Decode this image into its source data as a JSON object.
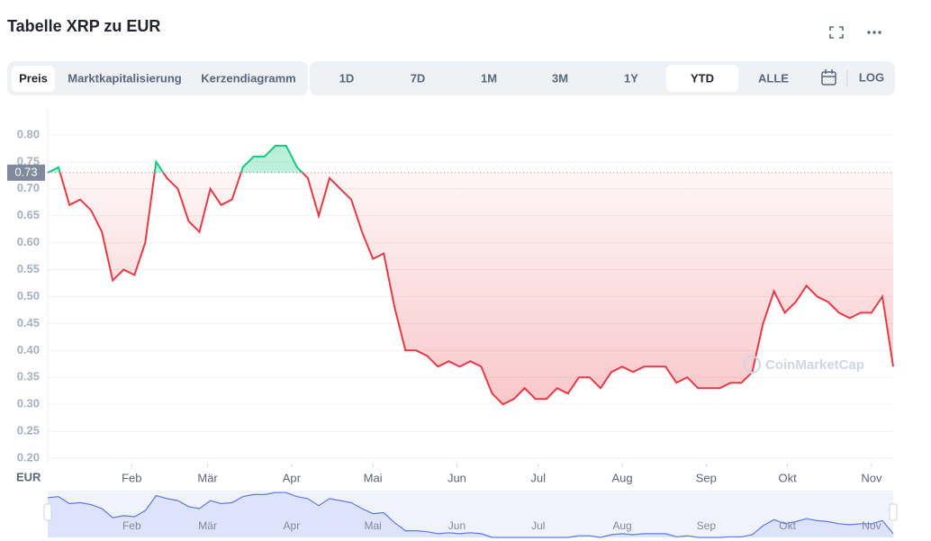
{
  "chart_data": {
    "type": "line",
    "title": "Tabelle XRP zu EUR",
    "tabs": [
      "Preis",
      "Marktkapitalisierung",
      "Kerzendiagramm"
    ],
    "active_tab": 0,
    "ranges": [
      "1D",
      "7D",
      "1M",
      "3M",
      "1Y",
      "YTD",
      "ALLE"
    ],
    "active_range": 5,
    "log_button": "LOG",
    "ylabel": "EUR",
    "watermark": "CoinMarketCap",
    "color": "#ea3943",
    "up_color": "#16c784",
    "reference_value": 0.73,
    "ylim": [
      0.19,
      0.85
    ],
    "yticks": [
      {
        "value": 0.2,
        "label": "0.20"
      },
      0.25,
      {
        "value": 0.3,
        "label": "0.30"
      },
      0.35,
      {
        "value": 0.4,
        "label": "0.40"
      },
      0.45,
      {
        "value": 0.5,
        "label": "0.50"
      },
      0.55,
      {
        "value": 0.6,
        "label": "0.60"
      },
      0.65,
      {
        "value": 0.7,
        "label": "0.70"
      },
      0.75,
      {
        "value": 0.8,
        "label": "0.80"
      }
    ],
    "xlim": [
      0,
      78
    ],
    "xticks": [
      {
        "value": 7.75,
        "label": "Feb"
      },
      {
        "value": 14.75,
        "label": "Mär"
      },
      {
        "value": 22.5,
        "label": "Apr"
      },
      {
        "value": 30,
        "label": "Mai"
      },
      {
        "value": 37.75,
        "label": "Jun"
      },
      {
        "value": 45.25,
        "label": "Jul"
      },
      {
        "value": 53,
        "label": "Aug"
      },
      {
        "value": 60.75,
        "label": "Sep"
      },
      {
        "value": 68.25,
        "label": "Okt"
      },
      {
        "value": 76,
        "label": "Nov"
      }
    ],
    "grid": true,
    "values": [
      0.73,
      0.74,
      0.67,
      0.68,
      0.66,
      0.62,
      0.53,
      0.55,
      0.54,
      0.6,
      0.75,
      0.72,
      0.7,
      0.64,
      0.62,
      0.7,
      0.67,
      0.68,
      0.74,
      0.76,
      0.76,
      0.78,
      0.78,
      0.74,
      0.72,
      0.65,
      0.72,
      0.7,
      0.68,
      0.62,
      0.57,
      0.58,
      0.48,
      0.4,
      0.4,
      0.39,
      0.37,
      0.38,
      0.37,
      0.38,
      0.37,
      0.32,
      0.3,
      0.31,
      0.33,
      0.31,
      0.31,
      0.33,
      0.32,
      0.35,
      0.35,
      0.33,
      0.36,
      0.37,
      0.36,
      0.37,
      0.37,
      0.37,
      0.34,
      0.35,
      0.33,
      0.33,
      0.33,
      0.34,
      0.34,
      0.36,
      0.45,
      0.51,
      0.47,
      0.49,
      0.52,
      0.5,
      0.49,
      0.47,
      0.46,
      0.47,
      0.47,
      0.5,
      0.37
    ]
  }
}
